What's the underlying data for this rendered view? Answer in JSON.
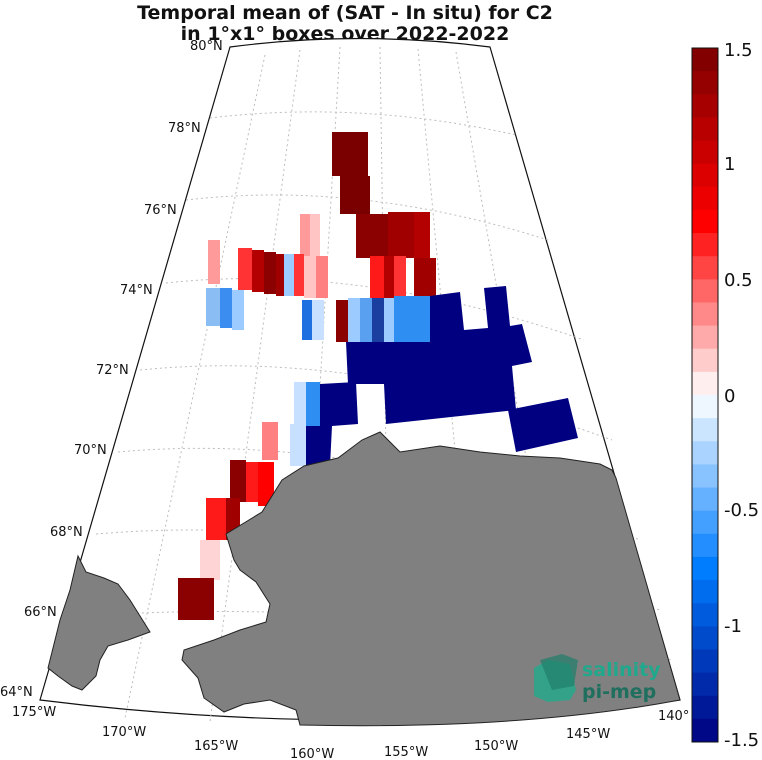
{
  "title": {
    "line1": "Temporal mean of (SAT - In situ) for C2",
    "line2": "in 1°x1° boxes over 2022-2022"
  },
  "lat_labels": [
    "80°N",
    "78°N",
    "76°N",
    "74°N",
    "72°N",
    "70°N",
    "68°N",
    "66°N",
    "64°N"
  ],
  "lon_labels": [
    "175°W",
    "170°W",
    "165°W",
    "160°W",
    "155°W",
    "150°W",
    "145°W",
    "140°"
  ],
  "colorbar": {
    "ticks": [
      "1.5",
      "1",
      "0.5",
      "0",
      "-0.5",
      "-1",
      "-1.5"
    ],
    "range": [
      -1.5,
      1.5
    ],
    "levels": 30
  },
  "colors": {
    "land": "#808080",
    "grid": "#b0b0b0",
    "accent_logo": "#1fa88c"
  },
  "logo": {
    "line1": "salinity",
    "line2": "pi-mep"
  }
}
